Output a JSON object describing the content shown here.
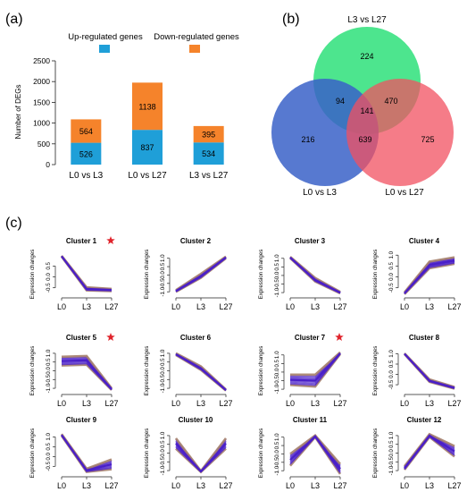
{
  "panel_labels": {
    "a": "(a)",
    "b": "(b)",
    "c": "(c)"
  },
  "colors": {
    "up": "#1f9fd8",
    "down": "#f5832b",
    "venn_l3_l27": "#2ee07a",
    "venn_l0_l3": "#3a62c8",
    "venn_l0_l27": "#f25060",
    "cluster_band": "#a57f6c",
    "cluster_line": "#4a1fc8",
    "star": "#e0242c"
  },
  "chart_data": [
    {
      "type": "bar",
      "stacked": true,
      "categories": [
        "L0 vs L3",
        "L0 vs L27",
        "L3 vs L27"
      ],
      "series": [
        {
          "name": "Up-regulated genes",
          "values": [
            526,
            837,
            534
          ]
        },
        {
          "name": "Down-regulated genes",
          "values": [
            564,
            1138,
            395
          ]
        }
      ],
      "ylabel": "Number of DEGs",
      "ylim": [
        0,
        2500
      ],
      "yticks": [
        "0",
        "500",
        "1000",
        "1500",
        "2000",
        "2500"
      ],
      "legend": "top"
    },
    {
      "type": "venn",
      "sets": [
        "L3 vs L27",
        "L0 vs L3",
        "L0 vs L27"
      ],
      "regions": {
        "l3l27_only": "224",
        "l0l3_only": "216",
        "l0l27_only": "725",
        "l3l27_l0l3": "94",
        "l3l27_l0l27": "470",
        "l0l3_l0l27": "639",
        "all": "141"
      }
    },
    {
      "type": "line",
      "ylabel": "Expression changes",
      "x": [
        "L0",
        "L3",
        "L27"
      ],
      "clusters": [
        {
          "title": "Cluster 1",
          "star": true,
          "yticks": [
            "0.5",
            "0.0",
            "-0.5"
          ],
          "ylim": [
            -0.8,
            1.05
          ],
          "center": [
            0.95,
            -0.55,
            -0.6
          ],
          "spread": [
            0.02,
            0.07,
            0.05
          ]
        },
        {
          "title": "Cluster 2",
          "star": false,
          "yticks": [
            "1.0",
            "0.5",
            "0.0",
            "-0.5",
            "-1.0"
          ],
          "ylim": [
            -1.15,
            1.25
          ],
          "center": [
            -0.95,
            -0.05,
            1.05
          ],
          "spread": [
            0.05,
            0.12,
            0.05
          ]
        },
        {
          "title": "Cluster 3",
          "star": false,
          "yticks": [
            "1.0",
            "0.5",
            "0.0",
            "-0.5",
            "-1.0"
          ],
          "ylim": [
            -1.1,
            1.25
          ],
          "center": [
            1.05,
            -0.25,
            -1.0
          ],
          "spread": [
            0.04,
            0.1,
            0.04
          ]
        },
        {
          "title": "Cluster 4",
          "star": false,
          "yticks": [
            "1.0",
            "0.5",
            "0.0",
            "-0.5"
          ],
          "ylim": [
            -0.8,
            1.05
          ],
          "center": [
            -0.75,
            0.55,
            0.75
          ],
          "spread": [
            0.04,
            0.15,
            0.15
          ]
        },
        {
          "title": "Cluster 5",
          "star": true,
          "yticks": [
            "1.0",
            "0.5",
            "0.0",
            "-0.5",
            "-1.0"
          ],
          "ylim": [
            -1.15,
            1.15
          ],
          "center": [
            0.55,
            0.6,
            -1.05
          ],
          "spread": [
            0.25,
            0.25,
            0.05
          ]
        },
        {
          "title": "Cluster 6",
          "star": false,
          "yticks": [
            "1.0",
            "0.5",
            "0.0",
            "-0.5",
            "-1.0"
          ],
          "ylim": [
            -1.15,
            1.15
          ],
          "center": [
            0.95,
            0.15,
            -1.1
          ],
          "spread": [
            0.05,
            0.1,
            0.03
          ]
        },
        {
          "title": "Cluster 7",
          "star": true,
          "yticks": [
            "1.0",
            "0.5",
            "0.0",
            "-0.5",
            "-1.0"
          ],
          "ylim": [
            -1.1,
            1.25
          ],
          "center": [
            -0.45,
            -0.5,
            1.1
          ],
          "spread": [
            0.3,
            0.35,
            0.05
          ]
        },
        {
          "title": "Cluster 8",
          "star": false,
          "yticks": [
            "1.0",
            "0.5",
            "0.0",
            "-0.5"
          ],
          "ylim": [
            -0.8,
            1.15
          ],
          "center": [
            1.0,
            -0.3,
            -0.65
          ],
          "spread": [
            0.02,
            0.06,
            0.04
          ]
        },
        {
          "title": "Cluster 9",
          "star": false,
          "yticks": [
            "1.0",
            "0.5",
            "0.0",
            "-0.5"
          ],
          "ylim": [
            -0.85,
            1.2
          ],
          "center": [
            1.1,
            -0.7,
            -0.4
          ],
          "spread": [
            0.04,
            0.08,
            0.25
          ]
        },
        {
          "title": "Cluster 10",
          "star": false,
          "yticks": [
            "1.0",
            "0.5",
            "0.0",
            "-0.5",
            "-1.0"
          ],
          "ylim": [
            -1.15,
            1.15
          ],
          "center": [
            0.55,
            -1.05,
            0.55
          ],
          "spread": [
            0.3,
            0.03,
            0.3
          ]
        },
        {
          "title": "Cluster 11",
          "star": false,
          "yticks": [
            "1.0",
            "0.5",
            "0.0",
            "-0.5",
            "-1.0"
          ],
          "ylim": [
            -1.15,
            1.25
          ],
          "center": [
            -0.35,
            1.05,
            -0.9
          ],
          "spread": [
            0.35,
            0.05,
            0.3
          ]
        },
        {
          "title": "Cluster 12",
          "star": false,
          "yticks": [
            "1.0",
            "0.5",
            "0.0",
            "-0.5",
            "-1.0"
          ],
          "ylim": [
            -1.15,
            1.15
          ],
          "center": [
            -0.85,
            1.0,
            0.1
          ],
          "spread": [
            0.1,
            0.08,
            0.3
          ]
        }
      ]
    }
  ]
}
